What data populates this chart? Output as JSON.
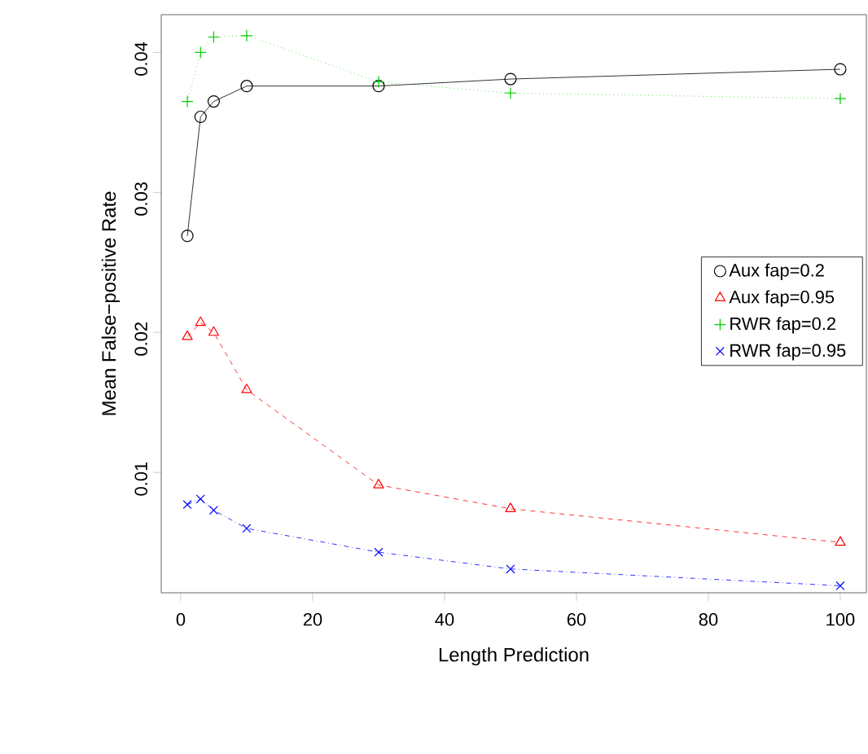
{
  "chart_data": {
    "type": "line",
    "xlabel": "Length Prediction",
    "ylabel": "Mean False−positive Rate",
    "x": [
      1,
      3,
      5,
      10,
      30,
      50,
      100
    ],
    "series": [
      {
        "name": "Aux fap=0.2",
        "color": "#000000",
        "marker": "circle",
        "line_style": "solid",
        "values": [
          0.0269,
          0.0354,
          0.0365,
          0.0376,
          0.0376,
          0.0381,
          0.0388
        ]
      },
      {
        "name": "Aux fap=0.95",
        "color": "#ff0000",
        "marker": "triangle",
        "line_style": "dashed",
        "values": [
          0.0197,
          0.0207,
          0.02,
          0.0159,
          0.0091,
          0.0074,
          0.005
        ]
      },
      {
        "name": "RWR fap=0.2",
        "color": "#00cd00",
        "marker": "plus",
        "line_style": "dotted",
        "values": [
          0.0365,
          0.04,
          0.0411,
          0.0412,
          0.0379,
          0.0371,
          0.0367
        ]
      },
      {
        "name": "RWR fap=0.95",
        "color": "#0000ff",
        "marker": "x",
        "line_style": "dashdot",
        "values": [
          0.0077,
          0.0081,
          0.0073,
          0.006,
          0.0043,
          0.0031,
          0.0019
        ]
      }
    ],
    "xlim": [
      -2.96,
      103.96
    ],
    "ylim": [
      0.0014,
      0.0427
    ],
    "xticks": [
      0,
      20,
      40,
      60,
      80,
      100
    ],
    "yticks": [
      0.01,
      0.02,
      0.03,
      0.04
    ],
    "legend": "right",
    "grid": false
  }
}
